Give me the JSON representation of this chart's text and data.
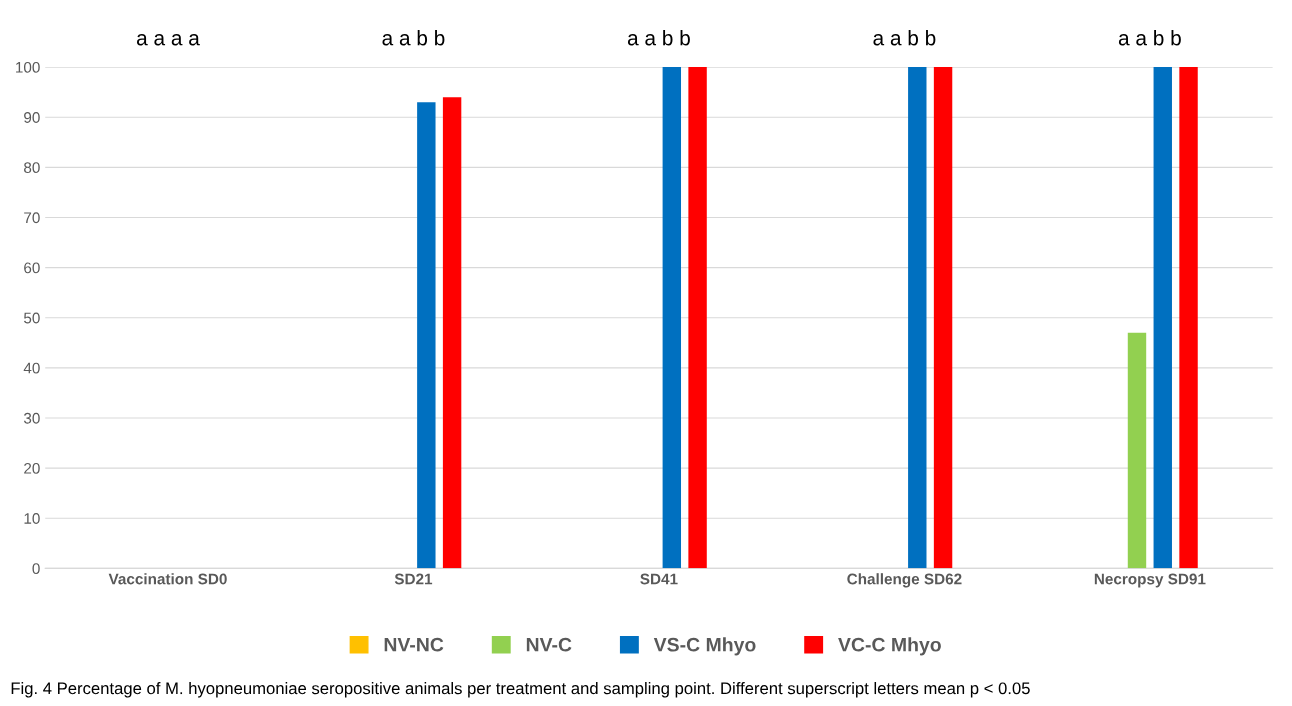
{
  "chart_data": {
    "type": "bar",
    "categories": [
      "Vaccination SD0",
      "SD21",
      "SD41",
      "Challenge SD62",
      "Necropsy SD91"
    ],
    "series": [
      {
        "name": "NV-NC",
        "color": "#ffc000",
        "values": [
          0,
          0,
          0,
          0,
          0
        ]
      },
      {
        "name": "NV-C",
        "color": "#92d050",
        "values": [
          0,
          0,
          0,
          0,
          47
        ]
      },
      {
        "name": "VS-C Mhyo",
        "color": "#0070c0",
        "values": [
          0,
          93,
          100,
          100,
          100
        ]
      },
      {
        "name": "VC-C Mhyo",
        "color": "#ff0000",
        "values": [
          0,
          94,
          100,
          100,
          100
        ]
      }
    ],
    "ylim": [
      0,
      100
    ],
    "yticks": [
      0,
      10,
      20,
      30,
      40,
      50,
      60,
      70,
      80,
      90,
      100
    ],
    "grid": "y",
    "legend": "bottom",
    "annotations": [
      "a a a a",
      "a a b b",
      "a a b b",
      "a a b b",
      "a a b b",
      "Fig. 4 Percentage of M. hyopneumoniae seropositive animals per treatment and sampling point. Different superscript letters mean p < 0.05"
    ]
  }
}
